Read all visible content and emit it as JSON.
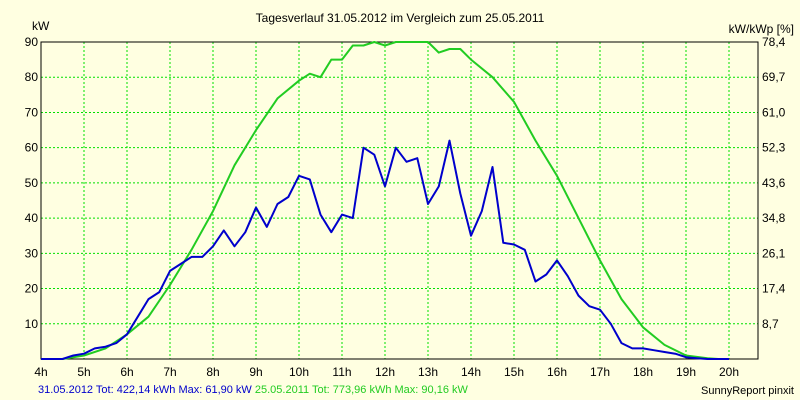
{
  "chart_data": {
    "type": "line",
    "title": "Tagesverlauf 31.05.2012 im Vergleich zum 25.05.2011",
    "ylabel_left": "kW",
    "ylabel_right": "kW/kWp [%]",
    "xlim": [
      4,
      20.3
    ],
    "ylim": [
      0,
      90
    ],
    "x_ticks": [
      "4h",
      "5h",
      "6h",
      "7h",
      "8h",
      "9h",
      "10h",
      "11h",
      "12h",
      "13h",
      "14h",
      "15h",
      "16h",
      "17h",
      "18h",
      "19h",
      "20h"
    ],
    "y_ticks_left": [
      "10",
      "20",
      "30",
      "40",
      "50",
      "60",
      "70",
      "80",
      "90"
    ],
    "y_ticks_right": [
      "8,7",
      "17,4",
      "26,1",
      "34,8",
      "43,6",
      "52,3",
      "61,0",
      "69,7",
      "78,4"
    ],
    "grid": true,
    "legend": [
      {
        "text": "31.05.2012 Tot: 422,14 kWh Max: 61,90 kW",
        "color": "#0000cc"
      },
      {
        "text": "25.05.2011 Tot: 773,96 kWh Max: 90,16 kW",
        "color": "#22cc22"
      }
    ],
    "series": [
      {
        "name": "31.05.2012",
        "color": "#0000cc",
        "x": [
          4.0,
          4.5,
          4.75,
          5.0,
          5.25,
          5.5,
          5.75,
          6.0,
          6.25,
          6.5,
          6.75,
          7.0,
          7.25,
          7.5,
          7.75,
          8.0,
          8.25,
          8.5,
          8.75,
          9.0,
          9.25,
          9.5,
          9.75,
          10.0,
          10.25,
          10.5,
          10.75,
          11.0,
          11.25,
          11.5,
          11.75,
          12.0,
          12.25,
          12.5,
          12.75,
          13.0,
          13.25,
          13.5,
          13.75,
          14.0,
          14.25,
          14.5,
          14.75,
          15.0,
          15.25,
          15.5,
          15.75,
          16.0,
          16.25,
          16.5,
          16.75,
          17.0,
          17.25,
          17.5,
          17.75,
          18.0,
          18.25,
          18.5,
          18.75,
          19.0,
          19.25,
          19.5,
          19.75,
          20.0
        ],
        "values": [
          0,
          0,
          1,
          1.5,
          3,
          3.5,
          4.5,
          7,
          12,
          17,
          19,
          25,
          27,
          29,
          29,
          32,
          36.5,
          32,
          36,
          43,
          37.5,
          44,
          46,
          52,
          51,
          41,
          36,
          41,
          40,
          60,
          58,
          49,
          60,
          56,
          57,
          44,
          49,
          62,
          47,
          35,
          42,
          54.5,
          33,
          32.5,
          31,
          22,
          24,
          28,
          23.5,
          18,
          15,
          14,
          10,
          4.5,
          3,
          3,
          2.5,
          2,
          1.5,
          0.5,
          0.2,
          0,
          0,
          0
        ]
      },
      {
        "name": "25.05.2011",
        "color": "#22cc22",
        "x": [
          4.0,
          4.5,
          5.0,
          5.5,
          6.0,
          6.5,
          7.0,
          7.5,
          8.0,
          8.5,
          9.0,
          9.5,
          10.0,
          10.25,
          10.5,
          10.75,
          11.0,
          11.25,
          11.5,
          11.75,
          12.0,
          12.25,
          12.5,
          13.0,
          13.25,
          13.5,
          13.75,
          14.0,
          14.5,
          15.0,
          15.5,
          16.0,
          16.5,
          17.0,
          17.5,
          18.0,
          18.5,
          19.0,
          19.5,
          19.75,
          20.0
        ],
        "values": [
          0,
          0,
          1,
          3,
          7,
          12,
          21,
          31,
          42,
          55,
          65,
          74,
          79,
          81,
          80,
          85,
          85,
          89,
          89,
          90,
          89,
          90,
          90,
          90,
          87,
          88,
          88,
          85,
          80,
          73,
          62,
          52,
          40,
          28,
          17,
          9,
          4,
          1,
          0.2,
          0,
          0
        ]
      }
    ]
  },
  "footer": {
    "legend_line1": "31.05.2012 Tot: 422,14 kWh Max: 61,90 kW",
    "legend_line2": "25.05.2011 Tot: 773,96 kWh Max: 90,16 kW",
    "credit": "SunnyReport pinxit"
  }
}
